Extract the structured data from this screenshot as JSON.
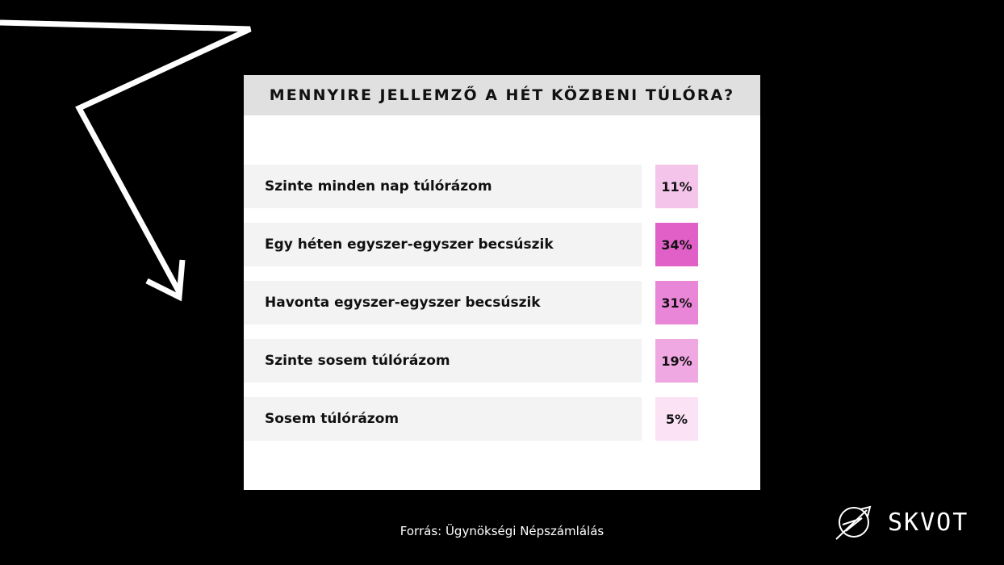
{
  "chart_data": {
    "type": "table",
    "title": "MENNYIRE JELLEMZŐ A HÉT KÖZBENI TÚLÓRA?",
    "rows": [
      {
        "label": "Szinte minden nap túlórázom",
        "value": 11,
        "display": "11%",
        "color": "#f4c4ea"
      },
      {
        "label": "Egy héten egyszer-egyszer becsúszik",
        "value": 34,
        "display": "34%",
        "color": "#e060c8"
      },
      {
        "label": "Havonta egyszer-egyszer becsúszik",
        "value": 31,
        "display": "31%",
        "color": "#ea86d8"
      },
      {
        "label": "Szinte sosem túlórázom",
        "value": 19,
        "display": "19%",
        "color": "#f0a8e2"
      },
      {
        "label": "Sosem túlórázom",
        "value": 5,
        "display": "5%",
        "color": "#fbe3f5"
      }
    ]
  },
  "source": "Forrás: Ügynökségi Népszámlálás",
  "logo": {
    "text": "SKVOT",
    "icon": "planet-arrow-icon"
  },
  "decoration": {
    "icon": "zigzag-arrow-icon",
    "color": "#ffffff"
  }
}
